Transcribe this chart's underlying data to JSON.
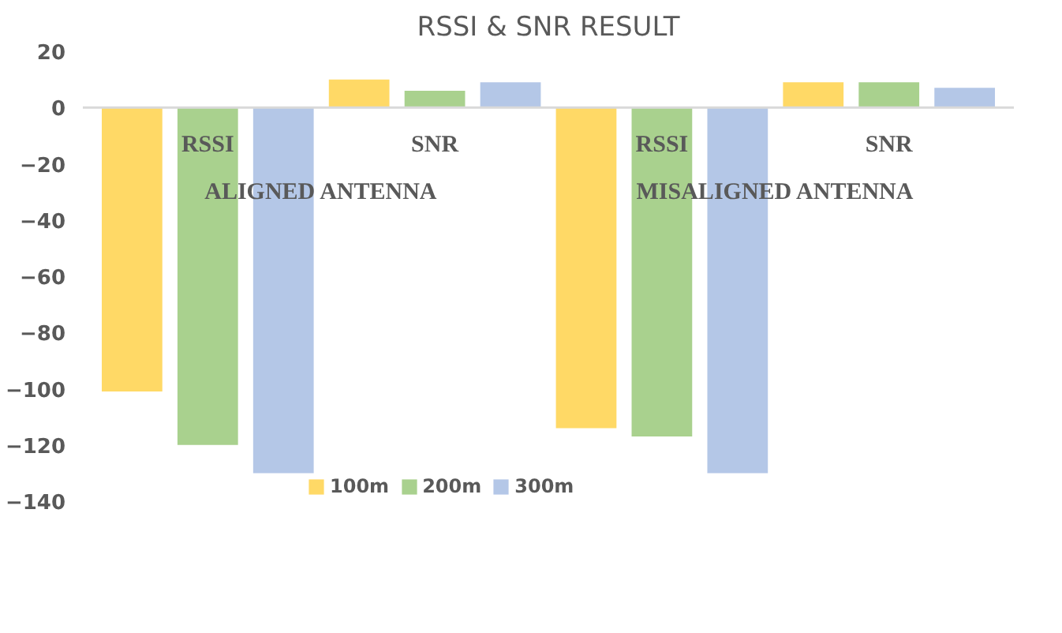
{
  "chart_data": {
    "type": "bar",
    "title": "RSSI & SNR RESULT",
    "categories": [
      "RSSI",
      "SNR",
      "RSSI",
      "SNR"
    ],
    "annotations": [
      "ALIGNED ANTENNA",
      "MISALIGNED ANTENNA"
    ],
    "series": [
      {
        "name": "100m",
        "color": "#ffd966",
        "values": [
          -101,
          10,
          -114,
          9
        ]
      },
      {
        "name": "200m",
        "color": "#a9d18e",
        "values": [
          -120,
          6,
          -117,
          9
        ]
      },
      {
        "name": "300m",
        "color": "#b4c7e7",
        "values": [
          -130,
          9,
          -130,
          7
        ]
      }
    ],
    "ylim": [
      -140,
      20
    ],
    "yticks": [
      -140,
      -120,
      -100,
      -80,
      -60,
      -40,
      -20,
      0,
      20
    ],
    "grid": false,
    "legend": "bottom"
  }
}
